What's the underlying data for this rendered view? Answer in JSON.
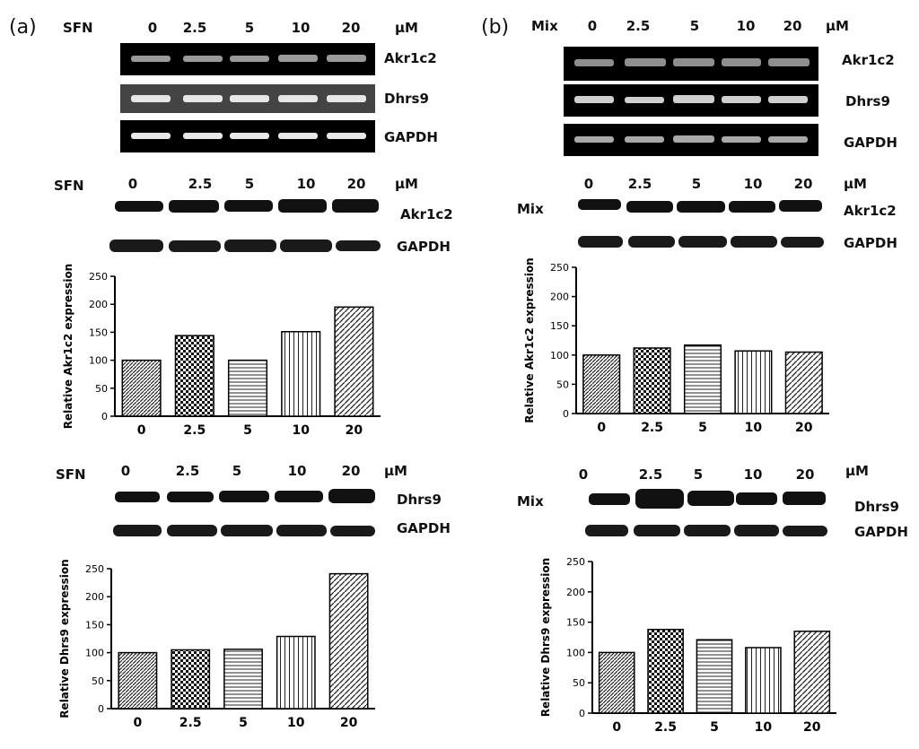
{
  "panels": {
    "a": {
      "letter": "(a)",
      "treatment": "SFN"
    },
    "b": {
      "letter": "(b)",
      "treatment": "Mix"
    }
  },
  "concentrations": [
    "0",
    "2.5",
    "5",
    "10",
    "20"
  ],
  "unit": "μM",
  "genes": {
    "akr": "Akr1c2",
    "dhrs": "Dhrs9",
    "gapdh": "GAPDH"
  },
  "chart_data": [
    {
      "id": "a-akr",
      "type": "bar",
      "categories": [
        "0",
        "2.5",
        "5",
        "10",
        "20"
      ],
      "values": [
        100,
        144,
        100,
        151,
        195
      ],
      "ylabel": "Relative Akr1c2 expression",
      "ylim": [
        0,
        250
      ],
      "yticks": [
        0,
        50,
        100,
        150,
        200,
        250
      ]
    },
    {
      "id": "a-dhrs",
      "type": "bar",
      "categories": [
        "0",
        "2.5",
        "5",
        "10",
        "20"
      ],
      "values": [
        100,
        105,
        106,
        129,
        241
      ],
      "ylabel": "Relative Dhrs9 expression",
      "ylim": [
        0,
        250
      ],
      "yticks": [
        0,
        50,
        100,
        150,
        200,
        250
      ]
    },
    {
      "id": "b-akr",
      "type": "bar",
      "categories": [
        "0",
        "2.5",
        "5",
        "10",
        "20"
      ],
      "values": [
        100,
        112,
        117,
        107,
        105
      ],
      "ylabel": "Relative Akr1c2 expression",
      "ylim": [
        0,
        250
      ],
      "yticks": [
        0,
        50,
        100,
        150,
        200,
        250
      ]
    },
    {
      "id": "b-dhrs",
      "type": "bar",
      "categories": [
        "0",
        "2.5",
        "5",
        "10",
        "20"
      ],
      "values": [
        100,
        138,
        121,
        108,
        135
      ],
      "ylabel": "Relative Dhrs9  expression",
      "ylim": [
        0,
        250
      ],
      "yticks": [
        0,
        50,
        100,
        150,
        200,
        250
      ]
    }
  ]
}
